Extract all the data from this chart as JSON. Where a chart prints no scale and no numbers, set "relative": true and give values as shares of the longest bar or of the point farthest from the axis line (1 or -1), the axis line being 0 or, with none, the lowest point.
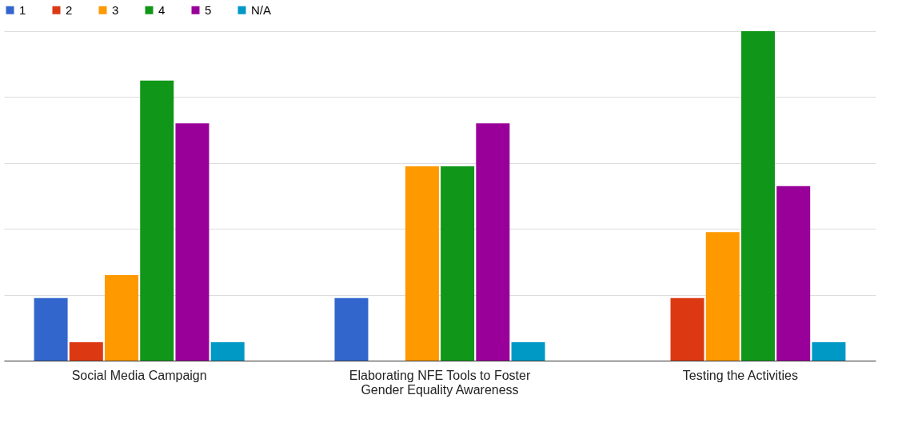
{
  "chart_data": {
    "type": "bar",
    "relative": true,
    "categories": [
      "Social Media Campaign",
      "Elaborating NFE Tools to Foster Gender Equality Awareness",
      "Testing the Activities"
    ],
    "series": [
      {
        "name": "1",
        "color": "#3366cc",
        "values": [
          0.19,
          0.19,
          0
        ]
      },
      {
        "name": "2",
        "color": "#dc3912",
        "values": [
          0.056,
          0,
          0.19
        ]
      },
      {
        "name": "3",
        "color": "#ff9900",
        "values": [
          0.26,
          0.59,
          0.39
        ]
      },
      {
        "name": "4",
        "color": "#109618",
        "values": [
          0.85,
          0.59,
          1
        ]
      },
      {
        "name": "5",
        "color": "#990099",
        "values": [
          0.72,
          0.72,
          0.53
        ]
      },
      {
        "name": "N/A",
        "color": "#0099c6",
        "values": [
          0.056,
          0.056,
          0.056
        ]
      }
    ],
    "legend": "top",
    "grid": "y"
  }
}
